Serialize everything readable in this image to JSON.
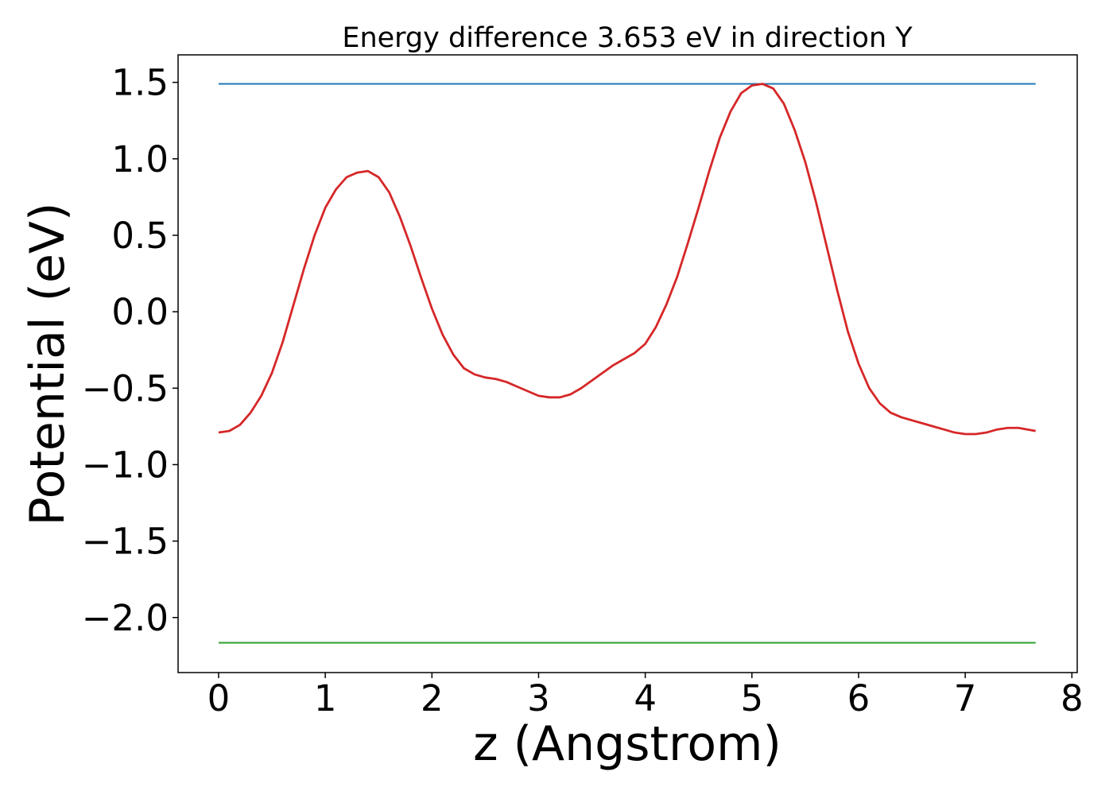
{
  "chart_data": {
    "type": "line",
    "title": "Energy difference 3.653 eV in direction Y",
    "xlabel": "z (Angstrom)",
    "ylabel": "Potential (eV)",
    "xlim": [
      -0.38,
      8.05
    ],
    "ylim": [
      -2.36,
      1.68
    ],
    "xticks": [
      0,
      1,
      2,
      3,
      4,
      5,
      6,
      7,
      8
    ],
    "xtick_labels": [
      "0",
      "1",
      "2",
      "3",
      "4",
      "5",
      "6",
      "7",
      "8"
    ],
    "yticks": [
      1.5,
      1.0,
      0.5,
      0.0,
      -0.5,
      -1.0,
      -1.5,
      -2.0
    ],
    "ytick_labels": [
      "1.5",
      "1.0",
      "0.5",
      "0.0",
      "−0.5",
      "−1.0",
      "−1.5",
      "−2.0"
    ],
    "grid": false,
    "series": [
      {
        "color": "#1f77b4",
        "x": [
          0,
          7.66
        ],
        "y": [
          1.49,
          1.49
        ]
      },
      {
        "color": "#2ca02c",
        "x": [
          0,
          7.66
        ],
        "y": [
          -2.165,
          -2.165
        ]
      },
      {
        "color": "#d62728",
        "x": [
          0,
          0.1,
          0.2,
          0.3,
          0.4,
          0.5,
          0.6,
          0.7,
          0.8,
          0.9,
          1.0,
          1.1,
          1.2,
          1.3,
          1.4,
          1.5,
          1.6,
          1.7,
          1.8,
          1.9,
          2.0,
          2.1,
          2.2,
          2.3,
          2.4,
          2.5,
          2.6,
          2.7,
          2.8,
          2.9,
          3.0,
          3.1,
          3.2,
          3.3,
          3.4,
          3.5,
          3.6,
          3.7,
          3.8,
          3.9,
          4.0,
          4.1,
          4.2,
          4.3,
          4.4,
          4.5,
          4.6,
          4.7,
          4.8,
          4.9,
          5.0,
          5.1,
          5.2,
          5.3,
          5.4,
          5.5,
          5.6,
          5.7,
          5.8,
          5.9,
          6.0,
          6.1,
          6.2,
          6.3,
          6.4,
          6.5,
          6.6,
          6.7,
          6.8,
          6.9,
          7.0,
          7.1,
          7.2,
          7.3,
          7.4,
          7.5,
          7.66
        ],
        "y": [
          -0.79,
          -0.78,
          -0.74,
          -0.66,
          -0.55,
          -0.4,
          -0.2,
          0.04,
          0.28,
          0.5,
          0.68,
          0.8,
          0.88,
          0.91,
          0.92,
          0.88,
          0.78,
          0.62,
          0.43,
          0.22,
          0.02,
          -0.15,
          -0.28,
          -0.37,
          -0.41,
          -0.43,
          -0.44,
          -0.46,
          -0.49,
          -0.52,
          -0.55,
          -0.56,
          -0.56,
          -0.54,
          -0.5,
          -0.45,
          -0.4,
          -0.35,
          -0.31,
          -0.27,
          -0.21,
          -0.1,
          0.05,
          0.23,
          0.45,
          0.68,
          0.92,
          1.14,
          1.31,
          1.43,
          1.48,
          1.49,
          1.46,
          1.36,
          1.19,
          0.98,
          0.72,
          0.43,
          0.14,
          -0.13,
          -0.34,
          -0.5,
          -0.6,
          -0.66,
          -0.69,
          -0.71,
          -0.73,
          -0.75,
          -0.77,
          -0.79,
          -0.8,
          -0.8,
          -0.79,
          -0.77,
          -0.76,
          -0.76,
          -0.78
        ]
      }
    ]
  }
}
